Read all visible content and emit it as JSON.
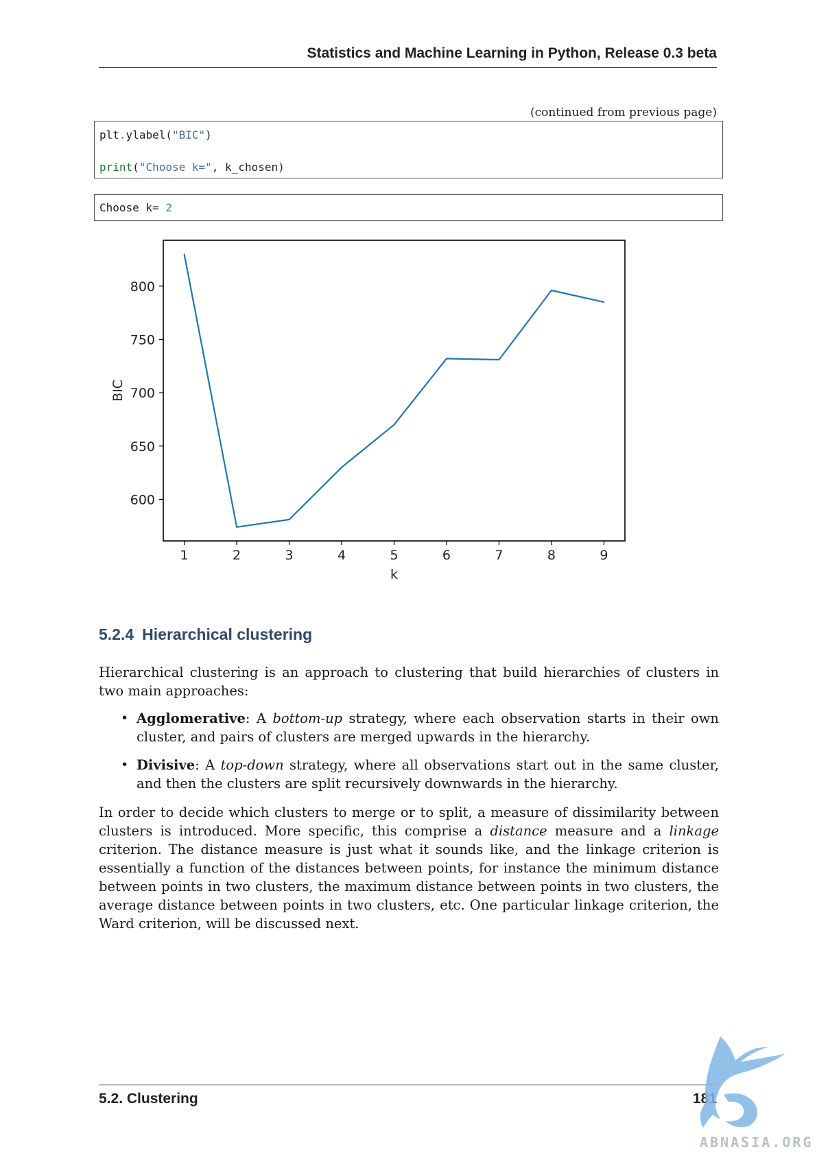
{
  "header": {
    "title": "Statistics and Machine Learning in Python, Release 0.3 beta"
  },
  "continued_note": "(continued from previous page)",
  "code": {
    "line1": {
      "obj": "plt",
      "dot": ".",
      "fn": "ylabel(",
      "str": "\"BIC\"",
      "close": ")"
    },
    "line2": {
      "builtin": "print",
      "open": "(",
      "str": "\"Choose k=\"",
      "rest": ", k_chosen)"
    }
  },
  "output": {
    "text": "Choose k=",
    "value": "2"
  },
  "chart_data": {
    "type": "line",
    "x": [
      1,
      2,
      3,
      4,
      5,
      6,
      7,
      8,
      9
    ],
    "values": [
      830,
      574,
      581,
      630,
      670,
      732,
      731,
      796,
      785
    ],
    "xlabel": "k",
    "ylabel": "BIC",
    "xticks": [
      "1",
      "2",
      "3",
      "4",
      "5",
      "6",
      "7",
      "8",
      "9"
    ],
    "yticks": [
      "600",
      "650",
      "700",
      "750",
      "800"
    ],
    "xlim": [
      0.6,
      9.4
    ],
    "ylim": [
      561,
      843
    ],
    "grid": false,
    "line_color": "#1f77b4"
  },
  "section": {
    "number": "5.2.4",
    "title": "Hierarchical clustering"
  },
  "intro": "Hierarchical clustering is an approach to clustering that build hierarchies of clusters in two main approaches:",
  "bullets": [
    {
      "term": "Agglomerative",
      "sep": ": A ",
      "em": "bottom-up",
      "rest": " strategy, where each observation starts in their own cluster, and pairs of clusters are merged upwards in the hierarchy."
    },
    {
      "term": "Divisive",
      "sep": ": A ",
      "em": "top-down",
      "rest": " strategy, where all observations start out in the same cluster, and then the clusters are split recursively downwards in the hierarchy."
    }
  ],
  "para2": {
    "p1": "In order to decide which clusters to merge or to split, a measure of dissimilarity between clusters is introduced.  More specific, this comprise a ",
    "em1": "distance",
    "p2": " measure and a ",
    "em2": "linkage",
    "p3": " criterion.  The distance measure is just what it sounds like, and the linkage criterion is essentially a function of the distances between points, for instance the minimum distance between points in two clusters, the maximum distance between points in two clusters, the average distance between points in two clusters, etc. One particular linkage criterion, the Ward criterion, will be discussed next."
  },
  "footer": {
    "section": "5.2.  Clustering",
    "page": "181"
  },
  "watermark": {
    "text": "ABNASIA.ORG",
    "icon": "griffin-icon"
  }
}
